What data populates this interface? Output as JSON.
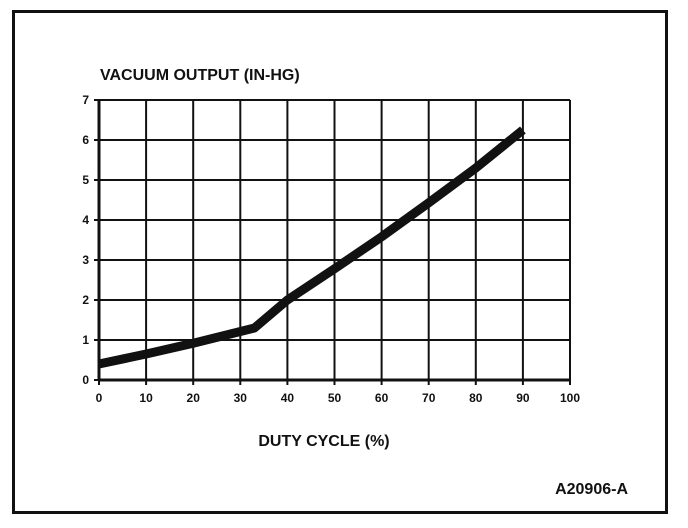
{
  "figure_id": "A20906-A",
  "chart_data": {
    "type": "line",
    "title": "",
    "ylabel": "VACUUM OUTPUT (IN-HG)",
    "xlabel": "DUTY CYCLE (%)",
    "xlim": [
      0,
      100
    ],
    "ylim": [
      0,
      7
    ],
    "xticks": [
      "0",
      "10",
      "20",
      "30",
      "40",
      "50",
      "60",
      "70",
      "80",
      "90",
      "100"
    ],
    "yticks": [
      "0",
      "1",
      "2",
      "3",
      "4",
      "5",
      "6",
      "7"
    ],
    "grid": true,
    "legend": "none",
    "line_color": "#111111",
    "series": [
      {
        "x": [
          0,
          10,
          20,
          33,
          40,
          50,
          60,
          70,
          80,
          90
        ],
        "y": [
          0.4,
          0.65,
          0.92,
          1.3,
          2.0,
          2.78,
          3.58,
          4.43,
          5.3,
          6.25
        ]
      }
    ]
  }
}
